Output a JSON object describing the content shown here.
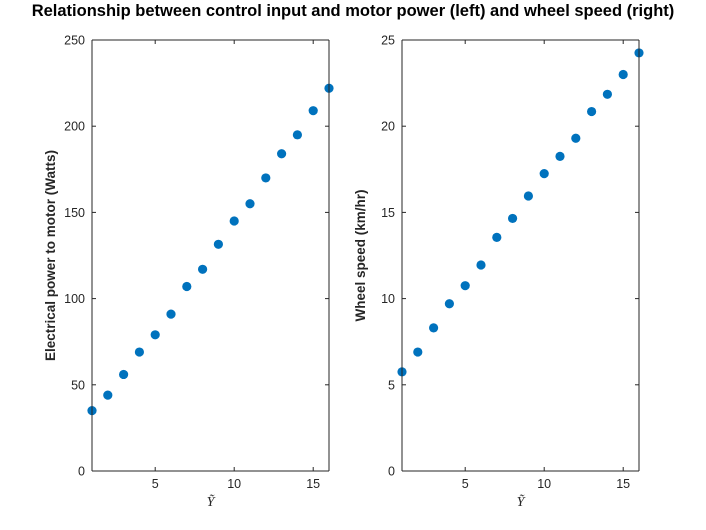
{
  "figure": {
    "title": "Relationship between control input and motor power (left) and wheel speed (right)"
  },
  "colors": {
    "marker": "#0072BD",
    "axis": "#262626"
  },
  "chart_data": [
    {
      "type": "scatter",
      "xlabel": "Ỹ",
      "ylabel": "Electrical power to motor (Watts)",
      "xlim": [
        1,
        16
      ],
      "ylim": [
        0,
        250
      ],
      "xticks": [
        5,
        10,
        15
      ],
      "yticks": [
        0,
        50,
        100,
        150,
        200,
        250
      ],
      "grid": false,
      "x": [
        1,
        2,
        3,
        4,
        5,
        6,
        7,
        8,
        9,
        10,
        11,
        12,
        13,
        14,
        15,
        16
      ],
      "y": [
        35,
        44,
        56,
        69,
        79,
        91,
        107,
        117,
        131.5,
        145,
        155,
        170,
        184,
        195,
        209,
        222
      ]
    },
    {
      "type": "scatter",
      "xlabel": "Ỹ",
      "ylabel": "Wheel speed (km/hr)",
      "xlim": [
        1,
        16
      ],
      "ylim": [
        0,
        25
      ],
      "xticks": [
        5,
        10,
        15
      ],
      "yticks": [
        0,
        5,
        10,
        15,
        20,
        25
      ],
      "grid": false,
      "x": [
        1,
        2,
        3,
        4,
        5,
        6,
        7,
        8,
        9,
        10,
        11,
        12,
        13,
        14,
        15,
        16
      ],
      "y": [
        5.75,
        6.9,
        8.3,
        9.7,
        10.75,
        11.95,
        13.55,
        14.65,
        15.95,
        17.25,
        18.25,
        19.3,
        20.85,
        21.85,
        23.0,
        24.25
      ]
    }
  ]
}
